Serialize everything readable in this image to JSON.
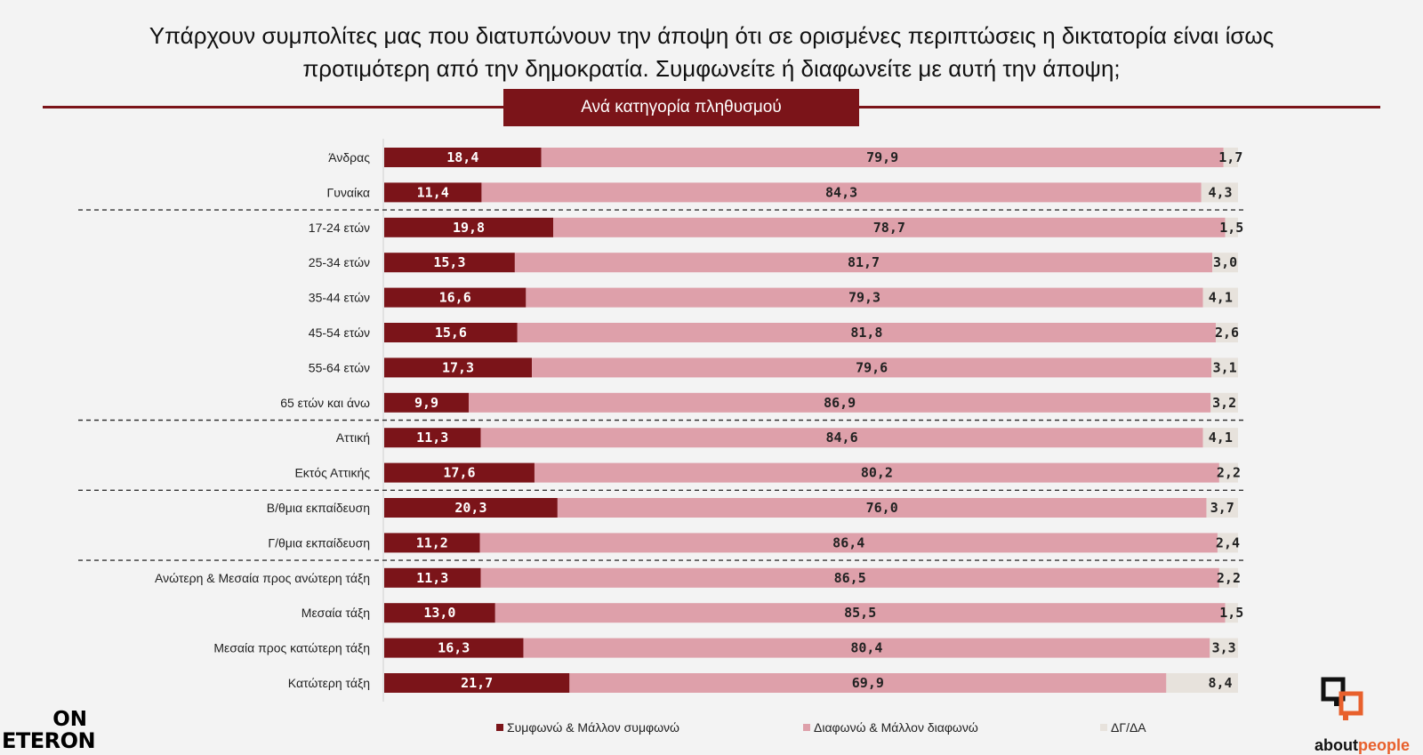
{
  "title_line1": "Υπάρχουν συμπολίτες μας που διατυπώνουν την άποψη ότι σε ορισμένες περιπτώσεις η δικτατορία είναι ίσως",
  "title_line2": "προτιμότερη από την δημοκρατία. Συμφωνείτε ή διαφωνείτε με αυτή την άποψη;",
  "subtitle": "Ανά κατηγορία πληθυσμού",
  "logos": {
    "left_top": "ON",
    "left_bottom": "ETERON",
    "right_prefix": "about",
    "right_suffix": "people"
  },
  "colors": {
    "agree": "#7b1419",
    "disagree": "#dea0aa",
    "dk": "#e7e2dc",
    "accent_orange": "#e8602c"
  },
  "chart_data": {
    "type": "bar",
    "orientation": "horizontal",
    "stacked": true,
    "categories": [
      "Άνδρας",
      "Γυναίκα",
      "17-24 ετών",
      "25-34 ετών",
      "35-44 ετών",
      "45-54 ετών",
      "55-64 ετών",
      "65 ετών και άνω",
      "Αττική",
      "Εκτός Αττικής",
      "Β/θμια εκπαίδευση",
      "Γ/θμια εκπαίδευση",
      "Ανώτερη & Μεσαία προς ανώτερη τάξη",
      "Μεσαία τάξη",
      "Μεσαία προς κατώτερη τάξη",
      "Κατώτερη τάξη"
    ],
    "series": [
      {
        "name": "Συμφωνώ & Μάλλον συμφωνώ",
        "values": [
          18.4,
          11.4,
          19.8,
          15.3,
          16.6,
          15.6,
          17.3,
          9.9,
          11.3,
          17.6,
          20.3,
          11.2,
          11.3,
          13.0,
          16.3,
          21.7
        ],
        "labels": [
          "18,4",
          "11,4",
          "19,8",
          "15,3",
          "16,6",
          "15,6",
          "17,3",
          "9,9",
          "11,3",
          "17,6",
          "20,3",
          "11,2",
          "11,3",
          "13,0",
          "16,3",
          "21,7"
        ]
      },
      {
        "name": "Διαφωνώ & Μάλλον διαφωνώ",
        "values": [
          79.9,
          84.3,
          78.7,
          81.7,
          79.3,
          81.8,
          79.6,
          86.9,
          84.6,
          80.2,
          76.0,
          86.4,
          86.5,
          85.5,
          80.4,
          69.9
        ],
        "labels": [
          "79,9",
          "84,3",
          "78,7",
          "81,7",
          "79,3",
          "81,8",
          "79,6",
          "86,9",
          "84,6",
          "80,2",
          "76,0",
          "86,4",
          "86,5",
          "85,5",
          "80,4",
          "69,9"
        ]
      },
      {
        "name": "ΔΓ/ΔΑ",
        "values": [
          1.7,
          4.3,
          1.5,
          3.0,
          4.1,
          2.6,
          3.1,
          3.2,
          4.1,
          2.2,
          3.7,
          2.4,
          2.2,
          1.5,
          3.3,
          8.4
        ],
        "labels": [
          "1,7",
          "4,3",
          "1,5",
          "3,0",
          "4,1",
          "2,6",
          "3,1",
          "3,2",
          "4,1",
          "2,2",
          "3,7",
          "2,4",
          "2,2",
          "1,5",
          "3,3",
          "8,4"
        ]
      }
    ],
    "group_separators_after": [
      1,
      7,
      9,
      11
    ],
    "xlim": [
      0,
      100
    ],
    "legend_position": "bottom"
  }
}
